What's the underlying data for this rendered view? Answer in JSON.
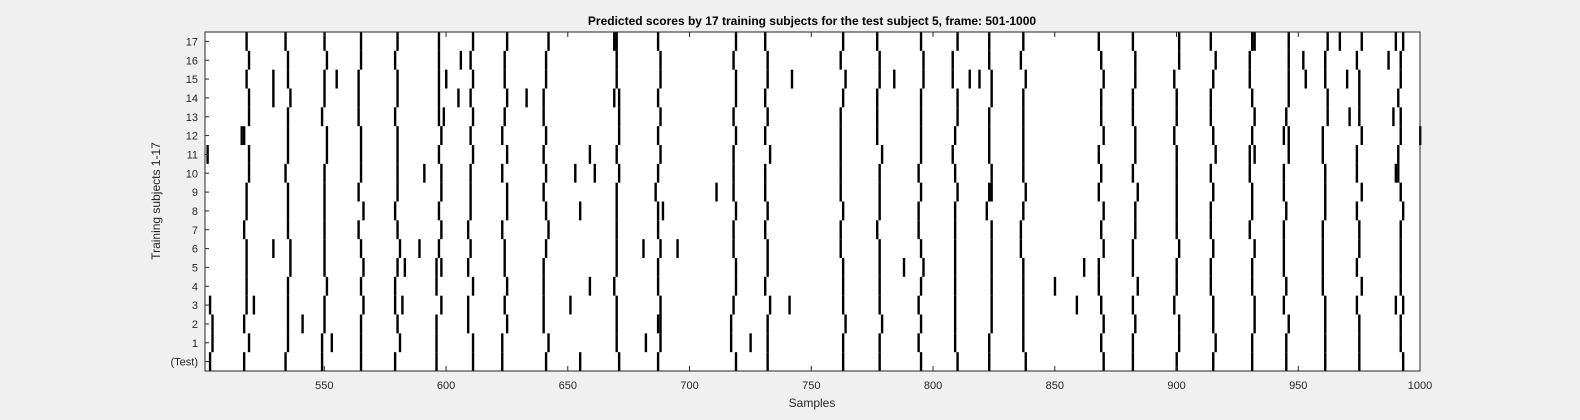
{
  "chart_data": {
    "type": "raster",
    "title": "Predicted scores by 17 training subjects for the test subject 5, frame: 501-1000",
    "xlabel": "Samples",
    "ylabel": "Training subjects 1-17",
    "xlim": [
      501,
      1000
    ],
    "xticks": [
      550,
      600,
      650,
      700,
      750,
      800,
      850,
      900,
      950,
      1000
    ],
    "ytick_labels": [
      "(Test)",
      "1",
      "2",
      "3",
      "4",
      "5",
      "6",
      "7",
      "8",
      "9",
      "10",
      "11",
      "12",
      "13",
      "14",
      "15",
      "16",
      "17"
    ],
    "background": "#ffffff",
    "mark_color": "#000000",
    "common_events": [
      518,
      535,
      550,
      565,
      580,
      597,
      610,
      624,
      641,
      670,
      687,
      718,
      732,
      763,
      778,
      795,
      809,
      823,
      837,
      869,
      883,
      900,
      915,
      931,
      945,
      961,
      975,
      992
    ],
    "extra_events": {
      "(Test)": [
        503,
        655
      ],
      "1": [
        504,
        553,
        682,
        725
      ],
      "2": [
        504,
        541,
        687
      ],
      "3": [
        503,
        521,
        582,
        651,
        741,
        859,
        990
      ],
      "4": [
        659,
        850
      ],
      "5": [
        583,
        598,
        788,
        862
      ],
      "6": [
        529,
        589,
        681,
        695
      ],
      "8": [
        655,
        689
      ],
      "9": [
        711,
        824
      ],
      "10": [
        591,
        653,
        661,
        990
      ],
      "11": [
        502,
        659,
        930
      ],
      "12": [
        516,
        946,
        1000
      ],
      "13": [
        599,
        971,
        989
      ],
      "14": [
        529,
        605,
        633,
        669
      ],
      "15": [
        529,
        555,
        600,
        742,
        784,
        815,
        819,
        953,
        970
      ],
      "16": [
        606,
        952,
        961,
        987
      ],
      "17": [
        670,
        931,
        967,
        990
      ]
    }
  }
}
